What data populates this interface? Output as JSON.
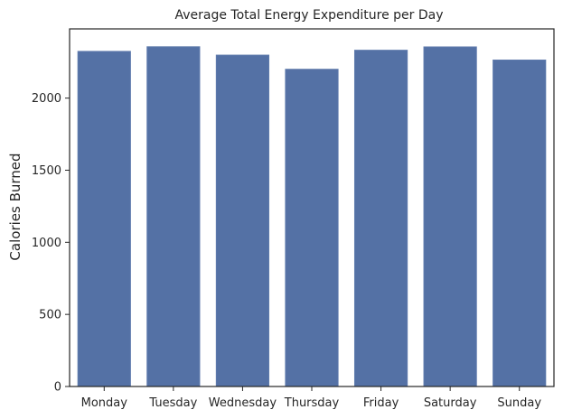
{
  "chart_data": {
    "type": "bar",
    "title": "Average Total Energy Expenditure per Day",
    "xlabel": "",
    "ylabel": "Calories Burned",
    "categories": [
      "Monday",
      "Tuesday",
      "Wednesday",
      "Thursday",
      "Friday",
      "Saturday",
      "Sunday"
    ],
    "values": [
      2324,
      2356,
      2298,
      2200,
      2332,
      2355,
      2264
    ],
    "ylim": [
      0,
      2480
    ],
    "yticks": [
      0,
      500,
      1000,
      1500,
      2000
    ],
    "grid": false,
    "bar_color": "#5471a5",
    "bar_edge_color": "#5e7aac"
  }
}
